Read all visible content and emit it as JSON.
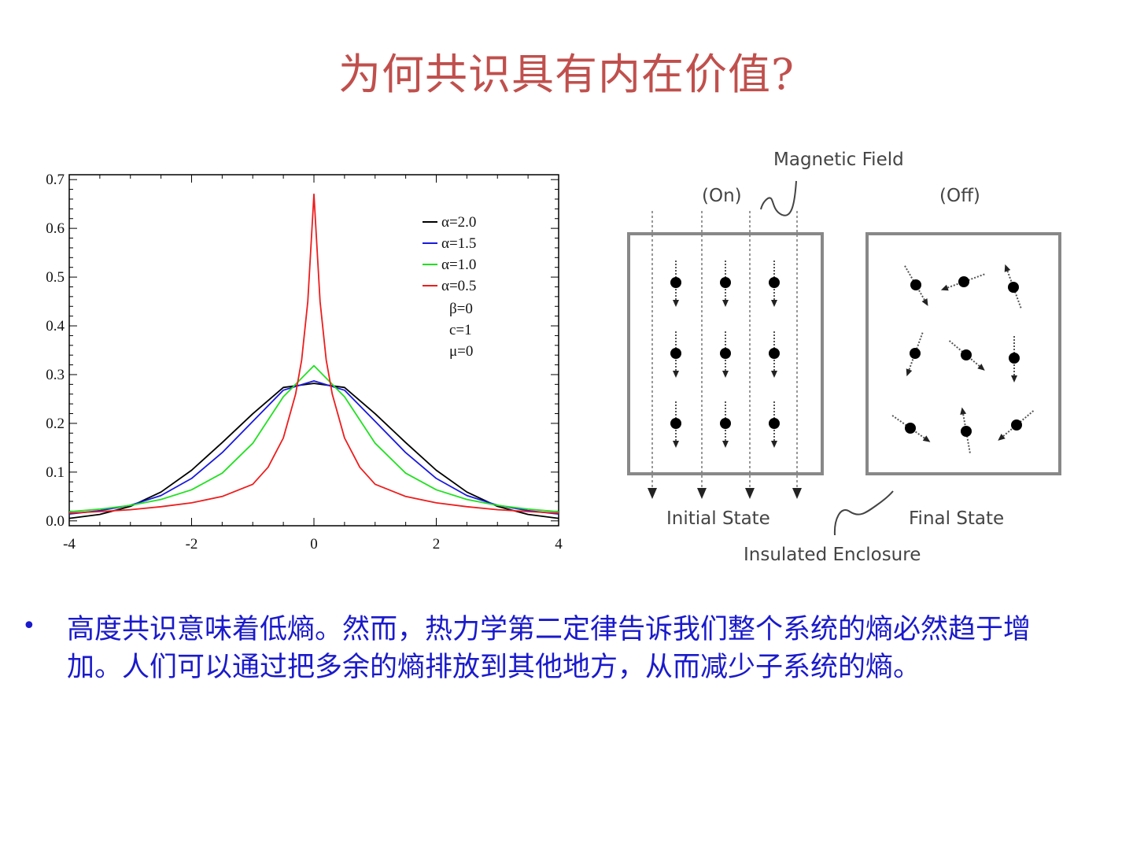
{
  "slide": {
    "title": "为何共识具有内在价值?",
    "bullet": "•",
    "body": "高度共识意味着低熵。然而，热力学第二定律告诉我们整个系统的熵必然趋于增加。人们可以通过把多余的熵排放到其他地方，从而减少子系统的熵。"
  },
  "chart_data": {
    "type": "line",
    "title": "",
    "xlabel": "",
    "ylabel": "",
    "xlim": [
      -4,
      4
    ],
    "ylim": [
      -0.01,
      0.71
    ],
    "xticks": [
      "-4",
      "-2",
      "0",
      "2",
      "4"
    ],
    "yticks": [
      "0.0",
      "0.1",
      "0.2",
      "0.3",
      "0.4",
      "0.5",
      "0.6",
      "0.7"
    ],
    "legend_position": "top-right",
    "symmetric_about_zero": true,
    "series": [
      {
        "name": "α=2.0",
        "color": "#000000",
        "x": [
          0,
          0.5,
          1,
          1.5,
          2,
          2.5,
          3,
          3.5,
          4
        ],
        "y": [
          0.282,
          0.2736,
          0.2197,
          0.1607,
          0.1038,
          0.0591,
          0.0297,
          0.0132,
          0.0052
        ]
      },
      {
        "name": "α=1.5",
        "color": "#1a1adc",
        "x": [
          0,
          0.5,
          1,
          1.5,
          2,
          2.5,
          3,
          3.5,
          4
        ],
        "y": [
          0.287,
          0.268,
          0.204,
          0.14,
          0.087,
          0.052,
          0.032,
          0.021,
          0.014
        ]
      },
      {
        "name": "α=1.0",
        "color": "#22e022",
        "x": [
          0,
          0.5,
          1,
          1.5,
          2,
          2.5,
          3,
          3.5,
          4
        ],
        "y": [
          0.3183,
          0.2546,
          0.1592,
          0.0979,
          0.0637,
          0.0439,
          0.0318,
          0.024,
          0.0187
        ]
      },
      {
        "name": "α=0.5",
        "color": "#ee1c1c",
        "x": [
          0,
          0.1,
          0.2,
          0.3,
          0.5,
          0.75,
          1,
          1.5,
          2,
          2.5,
          3,
          3.5,
          4
        ],
        "y": [
          0.67,
          0.45,
          0.33,
          0.26,
          0.17,
          0.11,
          0.075,
          0.05,
          0.037,
          0.029,
          0.023,
          0.019,
          0.016
        ]
      }
    ],
    "params": [
      "β=0",
      "c=1",
      "μ=0"
    ]
  },
  "diagram": {
    "magnetic_field": "Magnetic Field",
    "on": "(On)",
    "off": "(Off)",
    "initial_state": "Initial State",
    "final_state": "Final State",
    "enclosure": "Insulated Enclosure"
  }
}
